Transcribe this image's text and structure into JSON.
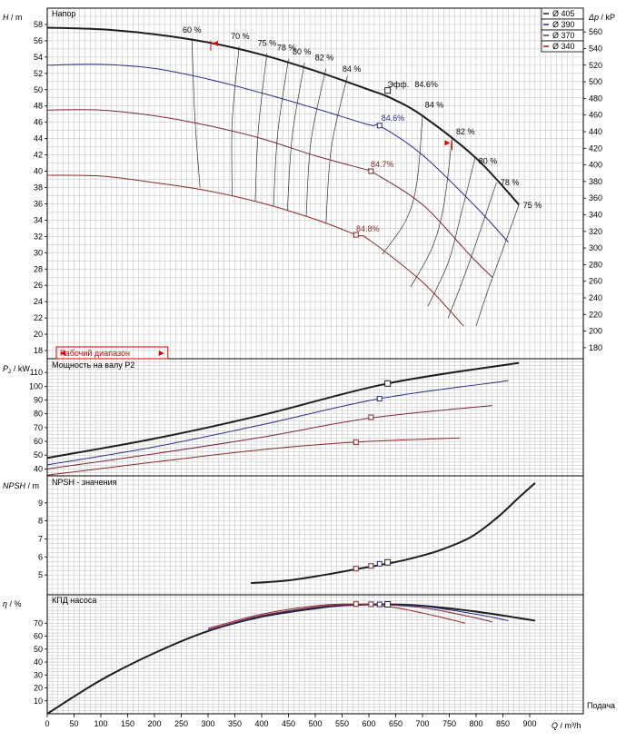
{
  "colors": {
    "d405": "#1e1e1e",
    "d390": "#2a2a8c",
    "d370": "#7a2838",
    "d340": "#8c2828",
    "grid": "#bdbdbd",
    "iso": "#333333",
    "marker_red": "#e00000"
  },
  "chart_data": [
    {
      "type": "line",
      "name": "head",
      "title": "Напор",
      "ylabel_var": "H",
      "ylabel_unit": " / m",
      "y2label_var": "Δp",
      "y2label_unit": " / kP",
      "xlim": [
        0,
        1000
      ],
      "ylim": [
        17,
        60
      ],
      "y_ticks": [
        18,
        20,
        22,
        24,
        26,
        28,
        30,
        32,
        34,
        36,
        38,
        40,
        42,
        44,
        46,
        48,
        50,
        52,
        54,
        56,
        58
      ],
      "y2_ticks": [
        180,
        200,
        220,
        240,
        260,
        280,
        300,
        320,
        340,
        360,
        380,
        400,
        420,
        440,
        460,
        480,
        500,
        520,
        540,
        560
      ],
      "operating_range": {
        "label": "Рабочий диапазон",
        "from": 0,
        "to": 225
      },
      "legend": {
        "position": "top-right",
        "entries": [
          "Ø 405",
          "Ø 390",
          "Ø 370",
          "Ø 340"
        ]
      },
      "series": [
        {
          "name": "Ø 405",
          "key": "d405",
          "x": [
            0,
            100,
            200,
            300,
            400,
            500,
            600,
            640,
            700,
            800,
            880
          ],
          "y": [
            57.6,
            57.4,
            56.8,
            55.8,
            54.3,
            52.3,
            50.0,
            49.0,
            46.8,
            41.6,
            35.9
          ]
        },
        {
          "name": "Ø 390",
          "key": "d390",
          "x": [
            0,
            100,
            200,
            300,
            400,
            500,
            600,
            622,
            700,
            800,
            860
          ],
          "y": [
            53.0,
            53.1,
            52.6,
            51.3,
            49.6,
            47.7,
            45.7,
            45.5,
            42.0,
            35.6,
            31.3
          ]
        },
        {
          "name": "Ø 370",
          "key": "d370",
          "x": [
            0,
            100,
            200,
            300,
            400,
            500,
            600,
            604,
            700,
            790,
            830
          ],
          "y": [
            47.5,
            47.5,
            46.8,
            45.6,
            44.0,
            41.9,
            40.1,
            40.0,
            35.9,
            29.6,
            27.0
          ]
        },
        {
          "name": "Ø 340",
          "key": "d340",
          "x": [
            0,
            100,
            200,
            300,
            400,
            500,
            576,
            600,
            700,
            777
          ],
          "y": [
            39.5,
            39.4,
            38.6,
            37.6,
            36.1,
            34.1,
            32.2,
            31.6,
            26.4,
            21.0
          ]
        }
      ],
      "efficiency_curves": [
        {
          "label": "60 %",
          "x": [
            270,
            275,
            285
          ],
          "y": [
            56.3,
            47.0,
            38.0
          ]
        },
        {
          "label": "70 %",
          "x": [
            358,
            345,
            345
          ],
          "y": [
            55.3,
            46.0,
            36.9
          ]
        },
        {
          "label": "75 %",
          "x": [
            410,
            394,
            388
          ],
          "y": [
            54.5,
            45.3,
            36.3
          ]
        },
        {
          "label": "78 %",
          "x": [
            450,
            430,
            422
          ],
          "y": [
            53.8,
            44.7,
            35.7
          ]
        },
        {
          "label": "80 %",
          "x": [
            480,
            457,
            448
          ],
          "y": [
            53.3,
            44.3,
            35.2
          ]
        },
        {
          "label": "82 %",
          "x": [
            520,
            492,
            483
          ],
          "y": [
            52.6,
            43.7,
            34.4
          ]
        },
        {
          "label": "84 %",
          "x": [
            560,
            530,
            520
          ],
          "y": [
            51.7,
            42.9,
            33.6
          ]
        },
        {
          "label": "84 %",
          "x": [
            700,
            690,
            670,
            625
          ],
          "y": [
            46.8,
            38.8,
            34.1,
            29.8
          ]
        },
        {
          "label": "82 %",
          "x": [
            755,
            740,
            718,
            678
          ],
          "y": [
            44.0,
            35.9,
            30.6,
            25.8
          ]
        },
        {
          "label": "80 %",
          "x": [
            798,
            770,
            748,
            710
          ],
          "y": [
            41.6,
            34.2,
            28.8,
            23.4
          ]
        },
        {
          "label": "78 %",
          "x": [
            838,
            800,
            775,
            748
          ],
          "y": [
            38.6,
            31.2,
            26.6,
            22.0
          ]
        },
        {
          "label": "75 %",
          "x": [
            880,
            845,
            820,
            800
          ],
          "y": [
            35.9,
            29.5,
            25.0,
            21.0
          ]
        }
      ],
      "curve_labels": [
        {
          "text": "60 %",
          "x": 270,
          "y": 57.0
        },
        {
          "text": "70 %",
          "x": 360,
          "y": 56.2
        },
        {
          "text": "75 %",
          "x": 410,
          "y": 55.4
        },
        {
          "text": "78 %",
          "x": 446,
          "y": 54.8
        },
        {
          "text": "80 %",
          "x": 475,
          "y": 54.3
        },
        {
          "text": "82 %",
          "x": 517,
          "y": 53.6
        },
        {
          "text": "84 %",
          "x": 568,
          "y": 52.2
        },
        {
          "text": "Эфф.",
          "x": 655,
          "y": 50.3
        },
        {
          "text": "84.6%",
          "x": 707,
          "y": 50.3
        },
        {
          "text": "84 %",
          "x": 722,
          "y": 47.8
        },
        {
          "text": "82 %",
          "x": 780,
          "y": 44.5
        },
        {
          "text": "80 %",
          "x": 822,
          "y": 40.9
        },
        {
          "text": "78 %",
          "x": 863,
          "y": 38.3
        },
        {
          "text": "75 %",
          "x": 905,
          "y": 35.5
        },
        {
          "text": "84.6%",
          "x": 645,
          "y": 46.2
        },
        {
          "text": "84.7%",
          "x": 625,
          "y": 40.5
        },
        {
          "text": "84.8%",
          "x": 598,
          "y": 32.6
        }
      ],
      "bep_points": [
        {
          "series": "d405",
          "x": 635,
          "y": 49.9
        },
        {
          "series": "d390",
          "x": 620,
          "y": 45.6
        },
        {
          "series": "d370",
          "x": 604,
          "y": 40.0
        },
        {
          "series": "d340",
          "x": 576,
          "y": 32.2
        }
      ],
      "markers": [
        {
          "x": 305,
          "y": 55.0,
          "dir": "left"
        },
        {
          "x": 755,
          "y": 42.8,
          "dir": "right"
        }
      ]
    },
    {
      "type": "line",
      "name": "power",
      "title": "Мощность на валу P2",
      "ylabel_var": "P",
      "ylabel_sub": "2",
      "ylabel_unit": " / kW",
      "xlim": [
        0,
        1000
      ],
      "ylim": [
        35,
        120
      ],
      "y_ticks": [
        40,
        50,
        60,
        70,
        80,
        90,
        100,
        110
      ],
      "series": [
        {
          "name": "Ø 405",
          "key": "d405",
          "x": [
            0,
            200,
            400,
            635,
            880
          ],
          "y": [
            48.0,
            62.0,
            79.0,
            102.0,
            117.0
          ]
        },
        {
          "name": "Ø 390",
          "key": "d390",
          "x": [
            0,
            200,
            400,
            620,
            860
          ],
          "y": [
            43.0,
            56.0,
            72.0,
            91.0,
            104.0
          ]
        },
        {
          "name": "Ø 370",
          "key": "d370",
          "x": [
            0,
            200,
            400,
            604,
            830
          ],
          "y": [
            40.0,
            51.0,
            63.0,
            77.0,
            86.0
          ]
        },
        {
          "name": "Ø 340",
          "key": "d340",
          "x": [
            0,
            200,
            400,
            576,
            770
          ],
          "y": [
            35.5,
            45.0,
            54.0,
            59.5,
            62.5
          ]
        }
      ],
      "bep_points": [
        {
          "series": "d405",
          "x": 635,
          "y": 102.0
        },
        {
          "series": "d390",
          "x": 620,
          "y": 91.0
        },
        {
          "series": "d370",
          "x": 604,
          "y": 77.5
        },
        {
          "series": "d340",
          "x": 576,
          "y": 59.5
        }
      ]
    },
    {
      "type": "line",
      "name": "npsh",
      "title": "NPSH - значения",
      "ylabel_var": "NPSH",
      "ylabel_unit": " / m",
      "xlim": [
        0,
        1000
      ],
      "ylim": [
        3.9,
        10.5
      ],
      "y_ticks": [
        5,
        6,
        7,
        8,
        9
      ],
      "series": [
        {
          "name": "Ø 405",
          "key": "d405",
          "x": [
            380,
            450,
            520,
            576,
            620,
            670,
            730,
            790,
            840,
            880,
            910
          ],
          "y": [
            4.55,
            4.7,
            5.02,
            5.32,
            5.55,
            5.85,
            6.35,
            7.1,
            8.2,
            9.3,
            10.1
          ]
        }
      ],
      "bep_points": [
        {
          "series": "d340",
          "x": 576,
          "y": 5.35
        },
        {
          "series": "d370",
          "x": 604,
          "y": 5.5
        },
        {
          "series": "d390",
          "x": 620,
          "y": 5.62
        },
        {
          "series": "d405",
          "x": 635,
          "y": 5.7
        }
      ]
    },
    {
      "type": "line",
      "name": "efficiency",
      "title": "КПД насоса",
      "ylabel_var": "η",
      "ylabel_unit": " / %",
      "xlim": [
        0,
        1000
      ],
      "ylim": [
        0,
        92
      ],
      "y_ticks": [
        10,
        20,
        30,
        40,
        50,
        60,
        70
      ],
      "series": [
        {
          "name": "Ø 405",
          "key": "d405",
          "x": [
            0,
            100,
            200,
            300,
            400,
            500,
            560,
            635,
            700,
            800,
            910
          ],
          "y": [
            0,
            26,
            47,
            64,
            75,
            81.5,
            84,
            84.6,
            83.5,
            79,
            72
          ]
        },
        {
          "name": "Ø 390",
          "key": "d390",
          "x": [
            300,
            400,
            500,
            560,
            620,
            700,
            800,
            860
          ],
          "y": [
            64.5,
            75.5,
            82,
            84,
            84.6,
            83,
            77,
            72
          ]
        },
        {
          "name": "Ø 370",
          "key": "d370",
          "x": [
            300,
            400,
            500,
            550,
            604,
            700,
            790,
            830
          ],
          "y": [
            65,
            76,
            82.5,
            84.2,
            84.7,
            82,
            75,
            71
          ]
        },
        {
          "name": "Ø 340",
          "key": "d340",
          "x": [
            300,
            400,
            500,
            576,
            650,
            720,
            780
          ],
          "y": [
            66,
            77,
            83.5,
            84.8,
            82,
            76,
            70
          ]
        }
      ],
      "bep_points": [
        {
          "series": "d340",
          "x": 576,
          "y": 84.8
        },
        {
          "series": "d370",
          "x": 604,
          "y": 84.7
        },
        {
          "series": "d390",
          "x": 620,
          "y": 84.6
        },
        {
          "series": "d405",
          "x": 635,
          "y": 84.6
        }
      ]
    }
  ],
  "x_axis": {
    "label_var": "Q",
    "label_unit": " / m³/h",
    "corner_label": "Подача",
    "ticks": [
      0,
      50,
      100,
      150,
      200,
      250,
      300,
      350,
      400,
      450,
      500,
      550,
      600,
      650,
      700,
      750,
      800,
      850,
      900
    ]
  }
}
